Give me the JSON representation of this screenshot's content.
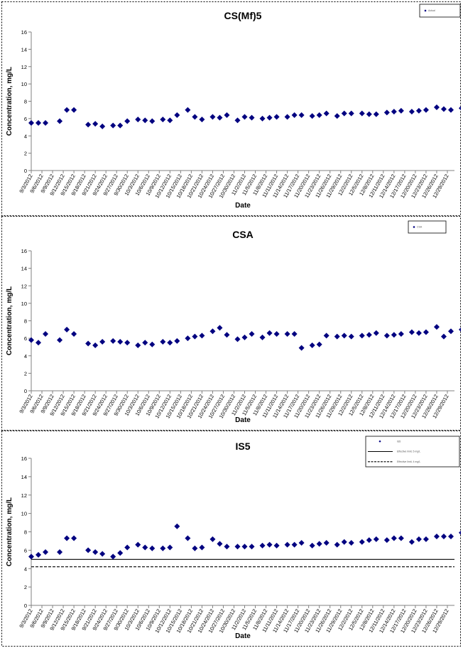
{
  "chart_data": [
    {
      "type": "scatter",
      "title": "CS(Mf)5",
      "xlabel": "Date",
      "ylabel": "Concentration, mg/L",
      "ylim": [
        0,
        16
      ],
      "yticks": [
        0,
        2,
        4,
        6,
        8,
        10,
        12,
        14,
        16
      ],
      "xlim": [
        "9/3/2012",
        "12/31/2012"
      ],
      "xticks": [
        "9/3/2012",
        "9/6/2012",
        "9/9/2012",
        "9/12/2012",
        "9/15/2012",
        "9/18/2012",
        "9/21/2012",
        "9/24/2012",
        "9/27/2012",
        "9/30/2012",
        "10/3/2012",
        "10/6/2012",
        "10/9/2012",
        "10/12/2012",
        "10/15/2012",
        "10/18/2012",
        "10/21/2012",
        "10/24/2012",
        "10/27/2012",
        "10/30/2012",
        "11/2/2012",
        "11/5/2012",
        "11/8/2012",
        "11/11/2012",
        "11/14/2012",
        "11/17/2012",
        "11/20/2012",
        "11/23/2012",
        "11/26/2012",
        "11/29/2012",
        "12/2/2012",
        "12/5/2012",
        "12/8/2012",
        "12/11/2012",
        "12/14/2012",
        "12/17/2012",
        "12/20/2012",
        "12/23/2012",
        "12/26/2012",
        "12/29/2012"
      ],
      "grid": false,
      "legend": {
        "position": "top-right",
        "entries": [
          "Actual"
        ]
      },
      "marker_color": "#000080",
      "series": [
        {
          "points": [
            [
              "9/3/2012",
              5.5
            ],
            [
              "9/5/2012",
              5.5
            ],
            [
              "9/7/2012",
              5.5
            ],
            [
              "9/11/2012",
              5.7
            ],
            [
              "9/13/2012",
              7.0
            ],
            [
              "9/15/2012",
              7.0
            ],
            [
              "9/19/2012",
              5.3
            ],
            [
              "9/21/2012",
              5.4
            ],
            [
              "9/23/2012",
              5.1
            ],
            [
              "9/26/2012",
              5.2
            ],
            [
              "9/28/2012",
              5.2
            ],
            [
              "9/30/2012",
              5.7
            ],
            [
              "10/3/2012",
              5.9
            ],
            [
              "10/5/2012",
              5.8
            ],
            [
              "10/7/2012",
              5.7
            ],
            [
              "10/10/2012",
              5.9
            ],
            [
              "10/12/2012",
              5.8
            ],
            [
              "10/14/2012",
              6.4
            ],
            [
              "10/17/2012",
              7.0
            ],
            [
              "10/19/2012",
              6.2
            ],
            [
              "10/21/2012",
              5.9
            ],
            [
              "10/24/2012",
              6.2
            ],
            [
              "10/26/2012",
              6.1
            ],
            [
              "10/28/2012",
              6.4
            ],
            [
              "10/31/2012",
              5.8
            ],
            [
              "11/2/2012",
              6.2
            ],
            [
              "11/4/2012",
              6.1
            ],
            [
              "11/7/2012",
              6.0
            ],
            [
              "11/9/2012",
              6.1
            ],
            [
              "11/11/2012",
              6.2
            ],
            [
              "11/14/2012",
              6.2
            ],
            [
              "11/16/2012",
              6.4
            ],
            [
              "11/18/2012",
              6.4
            ],
            [
              "11/21/2012",
              6.3
            ],
            [
              "11/23/2012",
              6.4
            ],
            [
              "11/25/2012",
              6.6
            ],
            [
              "11/28/2012",
              6.3
            ],
            [
              "11/30/2012",
              6.6
            ],
            [
              "12/2/2012",
              6.6
            ],
            [
              "12/5/2012",
              6.6
            ],
            [
              "12/7/2012",
              6.5
            ],
            [
              "12/9/2012",
              6.5
            ],
            [
              "12/12/2012",
              6.7
            ],
            [
              "12/14/2012",
              6.8
            ],
            [
              "12/16/2012",
              6.9
            ],
            [
              "12/19/2012",
              6.8
            ],
            [
              "12/21/2012",
              6.9
            ],
            [
              "12/23/2012",
              7.0
            ],
            [
              "12/26/2012",
              7.3
            ],
            [
              "12/28/2012",
              7.1
            ],
            [
              "12/30/2012",
              7.0
            ],
            [
              "1/2/2013",
              7.2
            ]
          ]
        }
      ]
    },
    {
      "type": "scatter",
      "title": "CSA",
      "xlabel": "Date",
      "ylabel": "Concentration, mg/L",
      "ylim": [
        0,
        16
      ],
      "yticks": [
        0,
        2,
        4,
        6,
        8,
        10,
        12,
        14,
        16
      ],
      "xlim": [
        "9/3/2012",
        "12/31/2012"
      ],
      "xticks": [
        "9/3/2012",
        "9/6/2012",
        "9/9/2012",
        "9/12/2012",
        "9/15/2012",
        "9/18/2012",
        "9/21/2012",
        "9/24/2012",
        "9/27/2012",
        "9/30/2012",
        "10/3/2012",
        "10/6/2012",
        "10/9/2012",
        "10/12/2012",
        "10/15/2012",
        "10/18/2012",
        "10/21/2012",
        "10/24/2012",
        "10/27/2012",
        "10/30/2012",
        "11/2/2012",
        "11/5/2012",
        "11/8/2012",
        "11/11/2012",
        "11/14/2012",
        "11/17/2012",
        "11/20/2012",
        "11/23/2012",
        "11/26/2012",
        "11/29/2012",
        "12/2/2012",
        "12/5/2012",
        "12/8/2012",
        "12/11/2012",
        "12/14/2012",
        "12/17/2012",
        "12/20/2012",
        "12/23/2012",
        "12/26/2012",
        "12/29/2012"
      ],
      "grid": false,
      "legend": {
        "position": "top-right",
        "entries": [
          "CSA"
        ]
      },
      "marker_color": "#000080",
      "series": [
        {
          "points": [
            [
              "9/3/2012",
              5.8
            ],
            [
              "9/5/2012",
              5.5
            ],
            [
              "9/7/2012",
              6.5
            ],
            [
              "9/11/2012",
              5.8
            ],
            [
              "9/13/2012",
              7.0
            ],
            [
              "9/15/2012",
              6.5
            ],
            [
              "9/19/2012",
              5.4
            ],
            [
              "9/21/2012",
              5.2
            ],
            [
              "9/23/2012",
              5.6
            ],
            [
              "9/26/2012",
              5.7
            ],
            [
              "9/28/2012",
              5.6
            ],
            [
              "9/30/2012",
              5.5
            ],
            [
              "10/3/2012",
              5.2
            ],
            [
              "10/5/2012",
              5.5
            ],
            [
              "10/7/2012",
              5.3
            ],
            [
              "10/10/2012",
              5.6
            ],
            [
              "10/12/2012",
              5.5
            ],
            [
              "10/14/2012",
              5.7
            ],
            [
              "10/17/2012",
              6.0
            ],
            [
              "10/19/2012",
              6.2
            ],
            [
              "10/21/2012",
              6.3
            ],
            [
              "10/24/2012",
              6.8
            ],
            [
              "10/26/2012",
              7.2
            ],
            [
              "10/28/2012",
              6.4
            ],
            [
              "10/31/2012",
              5.9
            ],
            [
              "11/2/2012",
              6.1
            ],
            [
              "11/4/2012",
              6.5
            ],
            [
              "11/7/2012",
              6.1
            ],
            [
              "11/9/2012",
              6.6
            ],
            [
              "11/11/2012",
              6.5
            ],
            [
              "11/14/2012",
              6.5
            ],
            [
              "11/16/2012",
              6.5
            ],
            [
              "11/18/2012",
              4.9
            ],
            [
              "11/21/2012",
              5.2
            ],
            [
              "11/23/2012",
              5.3
            ],
            [
              "11/25/2012",
              6.3
            ],
            [
              "11/28/2012",
              6.2
            ],
            [
              "11/30/2012",
              6.3
            ],
            [
              "12/2/2012",
              6.2
            ],
            [
              "12/5/2012",
              6.3
            ],
            [
              "12/7/2012",
              6.4
            ],
            [
              "12/9/2012",
              6.6
            ],
            [
              "12/12/2012",
              6.3
            ],
            [
              "12/14/2012",
              6.4
            ],
            [
              "12/16/2012",
              6.5
            ],
            [
              "12/19/2012",
              6.7
            ],
            [
              "12/21/2012",
              6.6
            ],
            [
              "12/23/2012",
              6.7
            ],
            [
              "12/26/2012",
              7.3
            ],
            [
              "12/28/2012",
              6.2
            ],
            [
              "12/30/2012",
              6.8
            ],
            [
              "1/2/2013",
              7.0
            ]
          ]
        }
      ]
    },
    {
      "type": "scatter",
      "title": "IS5",
      "xlabel": "Date",
      "ylabel": "Concentration, mg/L",
      "ylim": [
        0,
        16
      ],
      "yticks": [
        0,
        2,
        4,
        6,
        8,
        10,
        12,
        14,
        16
      ],
      "xlim": [
        "9/3/2012",
        "12/31/2012"
      ],
      "xticks": [
        "9/3/2012",
        "9/6/2012",
        "9/9/2012",
        "9/12/2012",
        "9/15/2012",
        "9/18/2012",
        "9/21/2012",
        "9/24/2012",
        "9/27/2012",
        "9/30/2012",
        "10/3/2012",
        "10/6/2012",
        "10/9/2012",
        "10/12/2012",
        "10/15/2012",
        "10/18/2012",
        "10/21/2012",
        "10/24/2012",
        "10/27/2012",
        "10/30/2012",
        "11/2/2012",
        "11/5/2012",
        "11/8/2012",
        "11/11/2012",
        "11/14/2012",
        "11/17/2012",
        "11/20/2012",
        "11/23/2012",
        "11/26/2012",
        "11/29/2012",
        "12/2/2012",
        "12/5/2012",
        "12/8/2012",
        "12/11/2012",
        "12/14/2012",
        "12/17/2012",
        "12/20/2012",
        "12/23/2012",
        "12/26/2012",
        "12/29/2012"
      ],
      "grid": false,
      "legend": {
        "position": "top-right",
        "entries": [
          "IS5",
          "Effective limit, 5 mg/L",
          "Effective limit, 4 mg/L"
        ]
      },
      "marker_color": "#000080",
      "reference_lines": [
        {
          "y": 5.0,
          "style": "solid"
        },
        {
          "y": 4.2,
          "style": "dashed"
        }
      ],
      "series": [
        {
          "points": [
            [
              "9/3/2012",
              5.3
            ],
            [
              "9/5/2012",
              5.5
            ],
            [
              "9/7/2012",
              5.8
            ],
            [
              "9/11/2012",
              5.8
            ],
            [
              "9/13/2012",
              7.3
            ],
            [
              "9/15/2012",
              7.3
            ],
            [
              "9/19/2012",
              6.0
            ],
            [
              "9/21/2012",
              5.8
            ],
            [
              "9/23/2012",
              5.6
            ],
            [
              "9/26/2012",
              5.3
            ],
            [
              "9/28/2012",
              5.7
            ],
            [
              "9/30/2012",
              6.3
            ],
            [
              "10/3/2012",
              6.6
            ],
            [
              "10/5/2012",
              6.3
            ],
            [
              "10/7/2012",
              6.2
            ],
            [
              "10/10/2012",
              6.2
            ],
            [
              "10/12/2012",
              6.3
            ],
            [
              "10/14/2012",
              8.6
            ],
            [
              "10/17/2012",
              7.3
            ],
            [
              "10/19/2012",
              6.2
            ],
            [
              "10/21/2012",
              6.3
            ],
            [
              "10/24/2012",
              7.2
            ],
            [
              "10/26/2012",
              6.7
            ],
            [
              "10/28/2012",
              6.4
            ],
            [
              "10/31/2012",
              6.4
            ],
            [
              "11/2/2012",
              6.4
            ],
            [
              "11/4/2012",
              6.4
            ],
            [
              "11/7/2012",
              6.5
            ],
            [
              "11/9/2012",
              6.6
            ],
            [
              "11/11/2012",
              6.5
            ],
            [
              "11/14/2012",
              6.6
            ],
            [
              "11/16/2012",
              6.6
            ],
            [
              "11/18/2012",
              6.8
            ],
            [
              "11/21/2012",
              6.5
            ],
            [
              "11/23/2012",
              6.7
            ],
            [
              "11/25/2012",
              6.8
            ],
            [
              "11/28/2012",
              6.6
            ],
            [
              "11/30/2012",
              6.9
            ],
            [
              "12/2/2012",
              6.8
            ],
            [
              "12/5/2012",
              6.9
            ],
            [
              "12/7/2012",
              7.1
            ],
            [
              "12/9/2012",
              7.2
            ],
            [
              "12/12/2012",
              7.1
            ],
            [
              "12/14/2012",
              7.3
            ],
            [
              "12/16/2012",
              7.3
            ],
            [
              "12/19/2012",
              6.9
            ],
            [
              "12/21/2012",
              7.2
            ],
            [
              "12/23/2012",
              7.2
            ],
            [
              "12/26/2012",
              7.5
            ],
            [
              "12/28/2012",
              7.5
            ],
            [
              "12/30/2012",
              7.5
            ],
            [
              "1/2/2013",
              7.9
            ]
          ]
        }
      ]
    }
  ]
}
